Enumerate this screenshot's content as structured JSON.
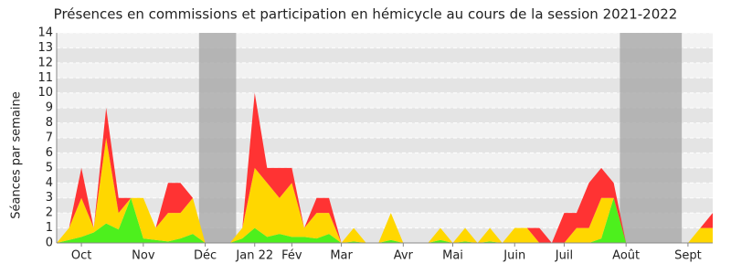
{
  "chart_data": {
    "type": "stacked_area",
    "title": "Présences en commissions et participation en hémicycle au cours de la session 2021-2022",
    "y_label": "Séances par semaine",
    "categories": [
      null,
      null,
      "Oct",
      null,
      null,
      null,
      null,
      "Nov",
      null,
      null,
      null,
      null,
      "Déc",
      null,
      null,
      null,
      "Jan 22",
      null,
      null,
      "Fév",
      null,
      null,
      null,
      "Mar",
      null,
      null,
      null,
      null,
      "Avr",
      null,
      null,
      null,
      "Mai",
      null,
      null,
      null,
      null,
      "Juin",
      null,
      null,
      null,
      "Juil",
      null,
      null,
      null,
      null,
      "Août",
      null,
      null,
      null,
      null,
      "Sept",
      null,
      null
    ],
    "series": [
      {
        "color": "#4df01d",
        "values": [
          0,
          0.2,
          0.4,
          0.7,
          1.3,
          0.9,
          3,
          0.3,
          0.2,
          0.1,
          0.3,
          0.6,
          0,
          0,
          0,
          0.3,
          1,
          0.4,
          0.6,
          0.4,
          0.4,
          0.3,
          0.6,
          0,
          0.1,
          0,
          0,
          0.2,
          0,
          0,
          0,
          0.2,
          0,
          0.1,
          0,
          0.1,
          0,
          0,
          0,
          0,
          0,
          0,
          0,
          0,
          0.3,
          3,
          0,
          0,
          0,
          0,
          0,
          0,
          0,
          0
        ]
      },
      {
        "color": "#ffd700",
        "values": [
          0,
          0.8,
          2.6,
          0.3,
          5.7,
          1.1,
          0,
          2.7,
          0.8,
          1.9,
          1.7,
          2.4,
          0,
          0,
          0,
          0.7,
          4,
          3.6,
          2.4,
          3.6,
          0.6,
          1.7,
          1.4,
          0,
          0.9,
          0,
          0,
          1.8,
          0,
          0,
          0,
          0.8,
          0,
          0.9,
          0,
          0.9,
          0,
          1,
          1,
          0,
          0,
          0,
          1,
          1,
          2.7,
          0,
          0,
          0,
          0,
          0,
          0,
          0,
          1,
          1
        ]
      },
      {
        "color": "#ff3333",
        "values": [
          0,
          0,
          2,
          0,
          2,
          1,
          0,
          0,
          0,
          2,
          2,
          0,
          0,
          0,
          0,
          0,
          5,
          1,
          2,
          1,
          0,
          1,
          1,
          0,
          0,
          0,
          0,
          0,
          0,
          0,
          0,
          0,
          0,
          0,
          0,
          0,
          0,
          0,
          0,
          1,
          0,
          2,
          1,
          3,
          2,
          1,
          0,
          0,
          0,
          0,
          0,
          0,
          0,
          1
        ]
      }
    ],
    "shaded_ranges": [
      [
        11.5,
        14.5
      ],
      [
        45.5,
        50.5
      ]
    ],
    "ylim": [
      0,
      14
    ],
    "yticks": [
      0,
      1,
      2,
      3,
      4,
      5,
      6,
      7,
      8,
      9,
      10,
      11,
      12,
      13,
      14
    ],
    "grid": true
  }
}
